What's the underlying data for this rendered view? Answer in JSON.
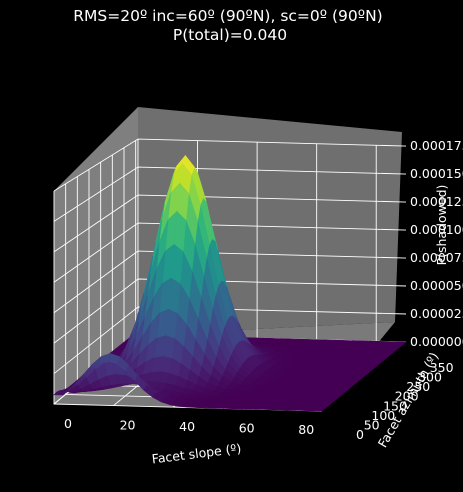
{
  "chart_data": {
    "type": "surface",
    "title_line1": "RMS=20º inc=60º (90ºN), sc=0º (90ºN)",
    "title_line2": "P(total)=0.040",
    "xlabel": "Facet slope (º)",
    "ylabel": "Facet azimuth (º)",
    "zlabel": "P(shadowed)",
    "xlim": [
      0,
      90
    ],
    "ylim": [
      0,
      360
    ],
    "zlim": [
      0,
      0.000175
    ],
    "xticks": [
      "0",
      "20",
      "40",
      "60",
      "80"
    ],
    "yticks": [
      "0",
      "50",
      "100",
      "150",
      "200",
      "250",
      "300",
      "350"
    ],
    "zticks": [
      "0.000000",
      "0.000025",
      "0.000050",
      "0.000075",
      "0.000100",
      "0.000125",
      "0.000150",
      "0.000175"
    ],
    "colormap": "viridis",
    "colors": {
      "background": "#000000",
      "pane": "#7f7f7f",
      "grid": "#ffffff",
      "text": "#ffffff"
    },
    "peak": {
      "slope": 30,
      "azimuth": 180,
      "value": 0.000185
    }
  }
}
